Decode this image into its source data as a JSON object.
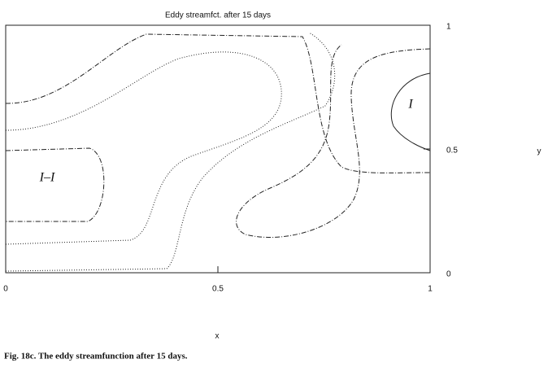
{
  "chart_data": {
    "type": "contour",
    "title": "Eddy streamfct. after 15 days",
    "xlabel": "x",
    "ylabel": "y",
    "xlim": [
      0,
      1
    ],
    "ylim": [
      0,
      1
    ],
    "xticks": [
      0,
      0.5,
      1
    ],
    "yticks": [
      0,
      0.5,
      1
    ],
    "annotations": [
      "I–I",
      "I"
    ]
  },
  "caption": "Fig. 18c. The eddy streamfunction after 15 days."
}
